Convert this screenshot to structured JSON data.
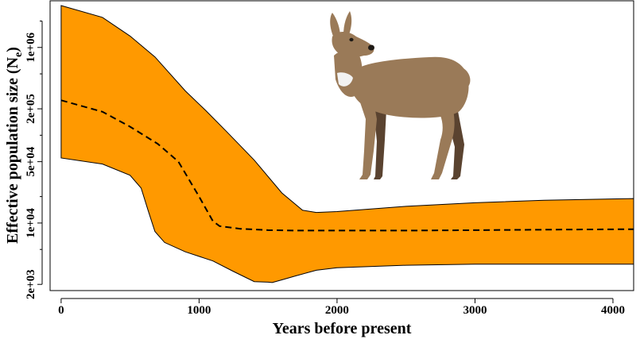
{
  "chart_data": {
    "type": "area",
    "title": "",
    "xlabel": "Years before present",
    "ylabel": "Effective population size (N",
    "ylabel_subscript": "e",
    "ylabel_close": ")",
    "xlim": [
      -80,
      4150
    ],
    "ylim": [
      1700,
      3400000
    ],
    "y_scale": "log",
    "grid": false,
    "legend": "none",
    "x_ticks": [
      {
        "value": 0,
        "label": "0"
      },
      {
        "value": 1000,
        "label": "1000"
      },
      {
        "value": 2000,
        "label": "2000"
      },
      {
        "value": 3000,
        "label": "3000"
      },
      {
        "value": 4000,
        "label": "4000"
      }
    ],
    "y_ticks": [
      {
        "value": 2000,
        "label": "2e+03"
      },
      {
        "value": 10000,
        "label": "1e+04"
      },
      {
        "value": 50000,
        "label": "5e+04"
      },
      {
        "value": 200000,
        "label": "2e+05"
      },
      {
        "value": 1000000,
        "label": "1e+06"
      }
    ],
    "y_minor_ticks": [
      5000,
      20000,
      100000,
      500000,
      2000000
    ],
    "band_color": "#ff9900",
    "median_color": "#000000",
    "series": [
      {
        "role": "upper_95_hpd",
        "x": [
          0,
          300,
          500,
          680,
          900,
          1050,
          1200,
          1400,
          1600,
          1750,
          1850,
          2000,
          2500,
          3000,
          3500,
          4150
        ],
        "values": [
          3000000,
          2200000,
          1350000,
          780000,
          320000,
          190000,
          110000,
          52000,
          22000,
          14000,
          13200,
          13500,
          15500,
          17000,
          18200,
          19000
        ]
      },
      {
        "role": "median",
        "x": [
          0,
          300,
          500,
          700,
          850,
          1000,
          1100,
          1150,
          1300,
          1500,
          1700,
          2000,
          2500,
          3000,
          3500,
          4150
        ],
        "values": [
          250000,
          185000,
          125000,
          80000,
          50000,
          20000,
          10500,
          9200,
          8600,
          8300,
          8200,
          8200,
          8200,
          8300,
          8400,
          8500
        ]
      },
      {
        "role": "lower_95_hpd",
        "x": [
          0,
          300,
          500,
          580,
          630,
          680,
          750,
          900,
          1100,
          1250,
          1400,
          1500,
          1530,
          1600,
          1700,
          1850,
          2000,
          2500,
          3000,
          3500,
          4150
        ],
        "values": [
          55000,
          47000,
          35000,
          25000,
          14000,
          8000,
          6000,
          4700,
          3700,
          2800,
          2150,
          2120,
          2100,
          2250,
          2500,
          2900,
          3100,
          3300,
          3400,
          3400,
          3400
        ]
      }
    ]
  },
  "illustration": {
    "subject": "roe-deer",
    "coat_color": "#9a7a58",
    "dark_color": "#5a4330"
  }
}
